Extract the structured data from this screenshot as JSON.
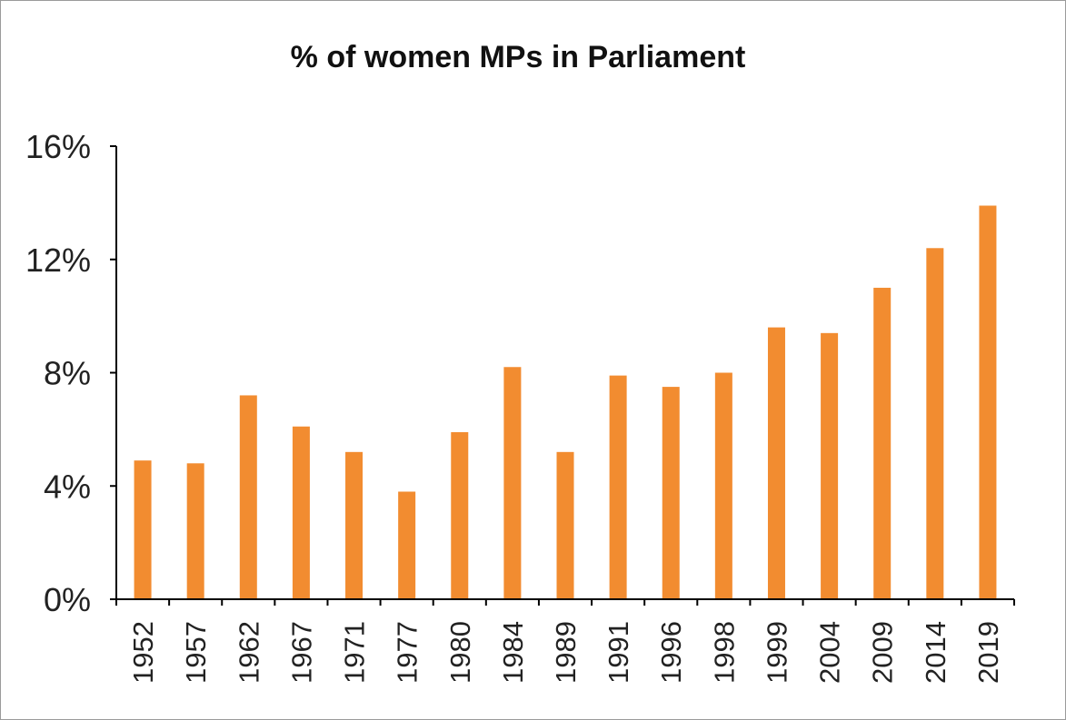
{
  "chart_data": {
    "type": "bar",
    "title": "% of women MPs in Parliament",
    "xlabel": "",
    "ylabel": "",
    "categories": [
      "1952",
      "1957",
      "1962",
      "1967",
      "1971",
      "1977",
      "1980",
      "1984",
      "1989",
      "1991",
      "1996",
      "1998",
      "1999",
      "2004",
      "2009",
      "2014",
      "2019"
    ],
    "values": [
      4.9,
      4.8,
      7.2,
      6.1,
      5.2,
      3.8,
      5.9,
      8.2,
      5.2,
      7.9,
      7.5,
      8.0,
      9.6,
      9.4,
      11.0,
      12.4,
      13.9
    ],
    "ylim": [
      0,
      16
    ],
    "yticks": [
      0,
      4,
      8,
      12,
      16
    ],
    "ytick_labels": [
      "0%",
      "4%",
      "8%",
      "12%",
      "16%"
    ],
    "grid": false,
    "legend": "none",
    "bar_color": "#f28c30",
    "axis_color": "#000000"
  }
}
